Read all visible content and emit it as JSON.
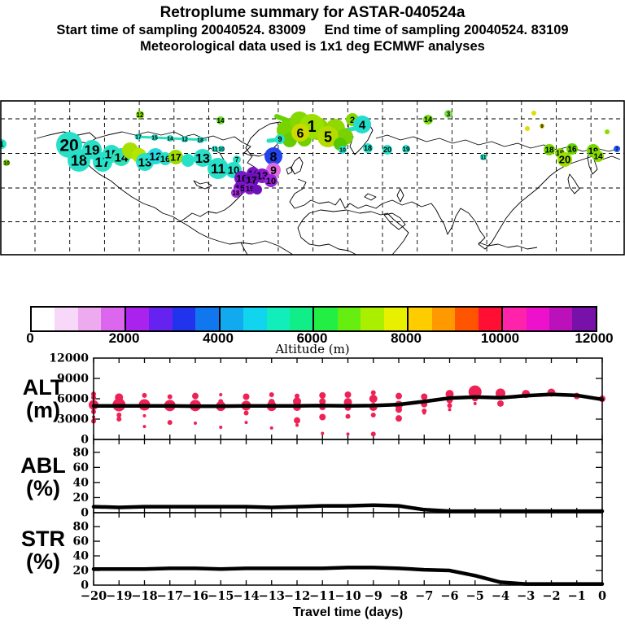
{
  "header": {
    "title": "Retroplume summary for ASTAR-040524a",
    "line2": "Start time of sampling 20040524. 83009     End time of sampling 20040524. 83109",
    "line3": "Meteorological data used is 1x1 deg ECMWF analyses"
  },
  "colorbar": {
    "title": "Altitude (m)",
    "min": 0,
    "max": 12000,
    "ticks": [
      0,
      2000,
      4000,
      6000,
      8000,
      10000,
      12000
    ],
    "colors": [
      "#ffffff",
      "#f8d8f8",
      "#eeaaee",
      "#dd66ee",
      "#aa22ee",
      "#6622ee",
      "#2233ee",
      "#1177ee",
      "#11aaee",
      "#11d4ee",
      "#11eebb",
      "#11ee88",
      "#22ee44",
      "#66ee11",
      "#aaee00",
      "#e8f000",
      "#ffcc00",
      "#ff9900",
      "#ff5500",
      "#ff0f33",
      "#ff22aa",
      "#ee11cc",
      "#bb11bb",
      "#7711aa"
    ]
  },
  "map": {
    "blobs": [
      [
        85,
        178,
        16,
        "#27e0c8",
        "20",
        21
      ],
      [
        97,
        197,
        14,
        "#27e0c8",
        "18",
        18
      ],
      [
        113,
        184,
        12,
        "#27e0c8",
        "19",
        17
      ],
      [
        126,
        199,
        12,
        "#27e0c8",
        "17",
        17
      ],
      [
        137,
        189,
        11,
        "#27e0c8",
        "15",
        15
      ],
      [
        149,
        193,
        11,
        "#2ee0b8",
        "14",
        15
      ],
      [
        160,
        185,
        10,
        "#a8e000",
        "",
        0
      ],
      [
        171,
        191,
        9,
        "#b8e400",
        "",
        0
      ],
      [
        178,
        199,
        11,
        "#27e0c8",
        "13",
        15
      ],
      [
        191,
        192,
        10,
        "#27d8e0",
        "12",
        14
      ],
      [
        203,
        195,
        8,
        "#27e0c8",
        "16",
        11
      ],
      [
        216,
        193,
        9,
        "#9cdc00",
        "17",
        12
      ],
      [
        231,
        197,
        8,
        "#27e0c8",
        "",
        0
      ],
      [
        249,
        194,
        11,
        "#27e0c8",
        "13",
        16
      ],
      [
        268,
        207,
        13,
        "#27e0c8",
        "11",
        17
      ],
      [
        287,
        209,
        10,
        "#27e0c8",
        "10",
        13
      ],
      [
        291,
        196,
        5,
        "#27e0c8",
        "7",
        8
      ],
      [
        336,
        192,
        11,
        "#2244ee",
        "8",
        16
      ],
      [
        336,
        209,
        9,
        "#e06ae0",
        "9",
        14
      ],
      [
        311,
        213,
        8,
        "#7d14cc",
        "14",
        11
      ],
      [
        322,
        216,
        9,
        "#8818d0",
        "13",
        13
      ],
      [
        297,
        219,
        9,
        "#7d14cc",
        "16",
        12
      ],
      [
        309,
        221,
        9,
        "#6b10bb",
        "17",
        12
      ],
      [
        333,
        222,
        8,
        "#9922dd",
        "10",
        11
      ],
      [
        295,
        231,
        8,
        "#7d14cc",
        "15",
        11
      ],
      [
        307,
        232,
        7,
        "#8818d0",
        "19",
        9
      ],
      [
        290,
        237,
        6,
        "#aa33dd",
        "18",
        8
      ],
      [
        316,
        233,
        6,
        "#6b10bb",
        "",
        0
      ],
      [
        352,
        160,
        12,
        "#77d400",
        "",
        0
      ],
      [
        368,
        149,
        12,
        "#84d800",
        "",
        0
      ],
      [
        390,
        158,
        14,
        "#8ad800",
        "",
        0
      ],
      [
        412,
        158,
        12,
        "#90d800",
        "",
        0
      ],
      [
        424,
        168,
        10,
        "#7ad000",
        "",
        0
      ],
      [
        356,
        172,
        9,
        "#66cc00",
        "",
        0
      ],
      [
        374,
        171,
        9,
        "#70d000",
        "",
        0
      ],
      [
        383,
        155,
        15,
        "#9be000",
        "1",
        20
      ],
      [
        369,
        163,
        11,
        "#ccd800",
        "6",
        16
      ],
      [
        403,
        168,
        13,
        "#b4dc00",
        "5",
        18
      ],
      [
        433,
        147,
        8,
        "#84d800",
        "2",
        11
      ],
      [
        445,
        153,
        11,
        "#22ddcc",
        "4",
        15
      ],
      [
        418,
        177,
        8,
        "#55c800",
        "",
        0
      ],
      [
        551,
        140,
        5,
        "#77dd44",
        "3",
        8
      ],
      [
        344,
        171,
        6,
        "#27e0c8",
        "9",
        9
      ],
      [
        170,
        168,
        4,
        "#27e0c8",
        "17",
        7
      ],
      [
        190,
        169,
        4,
        "#27e0c8",
        "15",
        7
      ],
      [
        209,
        170,
        4,
        "#27e0c8",
        "14",
        7
      ],
      [
        227,
        171,
        4,
        "#27e0c8",
        "12",
        7
      ],
      [
        246,
        172,
        4,
        "#27e0c8",
        "18",
        7
      ],
      [
        264,
        183,
        4,
        "#27e0c8",
        "11",
        7
      ],
      [
        272,
        183,
        4,
        "#27e0c8",
        "10",
        7
      ],
      [
        172,
        141,
        5,
        "#88dd00",
        "12",
        8
      ],
      [
        271,
        148,
        5,
        "#66dd22",
        "14",
        8
      ],
      [
        526,
        147,
        6,
        "#77dd11",
        "14",
        9
      ],
      [
        8,
        200,
        4,
        "#88dd00",
        "10",
        7
      ],
      [
        2,
        177,
        6,
        "#27e0c8",
        "1",
        9
      ],
      [
        421,
        184,
        5,
        "#27e0c8",
        "10",
        7
      ],
      [
        452,
        182,
        6,
        "#27e0c8",
        "18",
        9
      ],
      [
        476,
        184,
        6,
        "#27e0c8",
        "20",
        9
      ],
      [
        499,
        183,
        5,
        "#27e0c8",
        "19",
        8
      ],
      [
        594,
        193,
        4,
        "#27e0c8",
        "11",
        7
      ],
      [
        675,
        184,
        7,
        "#77d800",
        "18",
        10
      ],
      [
        688,
        188,
        6,
        "#88dc00",
        "19",
        9
      ],
      [
        703,
        183,
        7,
        "#66d400",
        "16",
        10
      ],
      [
        694,
        196,
        9,
        "#9ce000",
        "20",
        13
      ],
      [
        729,
        185,
        8,
        "#77d800",
        "19",
        11
      ],
      [
        735,
        192,
        7,
        "#88dc00",
        "14",
        10
      ],
      [
        656,
        139,
        3,
        "#dede00",
        "",
        0
      ],
      [
        666,
        155,
        3,
        "#cccc00",
        "9",
        6
      ],
      [
        648,
        158,
        3,
        "#dede00",
        "",
        0
      ],
      [
        746,
        162,
        3,
        "#88dd00",
        "",
        0
      ],
      [
        758,
        183,
        4,
        "#2255ee",
        "7",
        6
      ]
    ],
    "streaks": [
      {
        "points": [
          [
            330,
            173
          ],
          [
            385,
            167
          ],
          [
            447,
            156
          ]
        ],
        "color": "#22e0c0",
        "width": 5
      },
      {
        "points": [
          [
            167,
            168
          ],
          [
            253,
            172
          ]
        ],
        "color": "#22e0c0",
        "width": 3
      },
      {
        "points": [
          [
            340,
            143
          ],
          [
            420,
            174
          ]
        ],
        "color": "#66d400",
        "width": 6
      }
    ]
  },
  "chart_data": [
    {
      "type": "scatter",
      "name": "ALT",
      "unit": "(m)",
      "ylim": [
        0,
        12000
      ],
      "yticks": [
        0,
        3000,
        6000,
        9000,
        12000
      ],
      "dot_color": "#ee2255",
      "line_color": "#000000",
      "x": [
        -20,
        -19,
        -18,
        -17,
        -16,
        -15,
        -14,
        -13,
        -12,
        -11,
        -10,
        -9,
        -8,
        -7,
        -6,
        -5,
        -4,
        -3,
        -2,
        -1,
        0
      ],
      "line": [
        4950,
        4950,
        4950,
        4950,
        4900,
        4900,
        4950,
        4950,
        4950,
        5000,
        4950,
        5000,
        5150,
        5600,
        6100,
        6250,
        6150,
        6450,
        6650,
        6500,
        5900
      ],
      "scatter": [
        [
          [
            6700,
            3
          ],
          [
            6200,
            3
          ],
          [
            5100,
            6
          ],
          [
            4100,
            3
          ],
          [
            3300,
            2
          ],
          [
            2700,
            3
          ]
        ],
        [
          [
            6200,
            5
          ],
          [
            5100,
            8
          ],
          [
            3600,
            3
          ],
          [
            3000,
            3
          ]
        ],
        [
          [
            6500,
            3
          ],
          [
            5100,
            7
          ],
          [
            3500,
            2
          ],
          [
            1900,
            2
          ]
        ],
        [
          [
            6300,
            3
          ],
          [
            5000,
            7
          ],
          [
            2500,
            3
          ]
        ],
        [
          [
            6400,
            4
          ],
          [
            5000,
            7
          ],
          [
            2400,
            2
          ]
        ],
        [
          [
            6600,
            2
          ],
          [
            5600,
            3
          ],
          [
            4900,
            6
          ],
          [
            1800,
            2
          ]
        ],
        [
          [
            6300,
            4
          ],
          [
            5000,
            6
          ],
          [
            3900,
            3
          ],
          [
            2500,
            2
          ]
        ],
        [
          [
            6600,
            3
          ],
          [
            5500,
            4
          ],
          [
            4900,
            6
          ],
          [
            1700,
            2
          ]
        ],
        [
          [
            6400,
            3
          ],
          [
            5600,
            5
          ],
          [
            4800,
            5
          ],
          [
            2800,
            4
          ],
          [
            2100,
            2
          ]
        ],
        [
          [
            6500,
            4
          ],
          [
            5600,
            4
          ],
          [
            4800,
            4
          ],
          [
            3300,
            4
          ],
          [
            900,
            2
          ]
        ],
        [
          [
            6600,
            4
          ],
          [
            5500,
            5
          ],
          [
            4700,
            4
          ],
          [
            3400,
            3
          ],
          [
            800,
            2
          ]
        ],
        [
          [
            6900,
            3
          ],
          [
            6000,
            5
          ],
          [
            4800,
            5
          ],
          [
            3600,
            3
          ],
          [
            800,
            3
          ]
        ],
        [
          [
            6400,
            4
          ],
          [
            5100,
            5
          ],
          [
            4400,
            4
          ],
          [
            3100,
            4
          ]
        ],
        [
          [
            6300,
            4
          ],
          [
            5200,
            4
          ],
          [
            4200,
            3
          ],
          [
            3900,
            2
          ]
        ],
        [
          [
            6700,
            5
          ],
          [
            5800,
            4
          ],
          [
            5000,
            3
          ],
          [
            4400,
            2
          ]
        ],
        [
          [
            7000,
            8
          ],
          [
            6100,
            4
          ],
          [
            5300,
            2
          ]
        ],
        [
          [
            6800,
            6
          ],
          [
            5300,
            4
          ]
        ],
        [
          [
            6700,
            5
          ]
        ],
        [
          [
            6900,
            5
          ]
        ],
        [
          [
            6400,
            4
          ]
        ],
        [
          [
            6000,
            4
          ]
        ]
      ]
    },
    {
      "type": "line",
      "name": "ABL",
      "unit": "(%)",
      "ylim": [
        0,
        97
      ],
      "yticks": [
        0,
        20,
        40,
        60,
        80
      ],
      "line_color": "#000000",
      "x": [
        -20,
        -19,
        -18,
        -17,
        -16,
        -15,
        -14,
        -13,
        -12,
        -11,
        -10,
        -9,
        -8,
        -7,
        -6,
        -5,
        -4,
        -3,
        -2,
        -1,
        0
      ],
      "line": [
        8,
        7,
        8,
        8,
        8,
        8,
        8,
        7,
        8,
        9,
        9,
        10,
        9,
        4,
        2,
        2,
        2,
        2,
        2,
        2,
        2
      ]
    },
    {
      "type": "line",
      "name": "STR",
      "unit": "(%)",
      "ylim": [
        0,
        99
      ],
      "yticks": [
        0,
        20,
        40,
        60,
        80
      ],
      "line_color": "#000000",
      "x": [
        -20,
        -19,
        -18,
        -17,
        -16,
        -15,
        -14,
        -13,
        -12,
        -11,
        -10,
        -9,
        -8,
        -7,
        -6,
        -5,
        -4,
        -3,
        -2,
        -1,
        0
      ],
      "line": [
        22,
        22,
        22,
        23,
        23,
        22,
        23,
        23,
        23,
        23,
        24,
        24,
        23,
        21,
        20,
        13,
        4,
        1.5,
        1.5,
        1.5,
        1.5
      ]
    }
  ],
  "xaxis": {
    "label": "Travel time (days)",
    "ticks": [
      -20,
      -19,
      -18,
      -17,
      -16,
      -15,
      -14,
      -13,
      -12,
      -11,
      -10,
      -9,
      -8,
      -7,
      -6,
      -5,
      -4,
      -3,
      -2,
      -1,
      0
    ]
  }
}
